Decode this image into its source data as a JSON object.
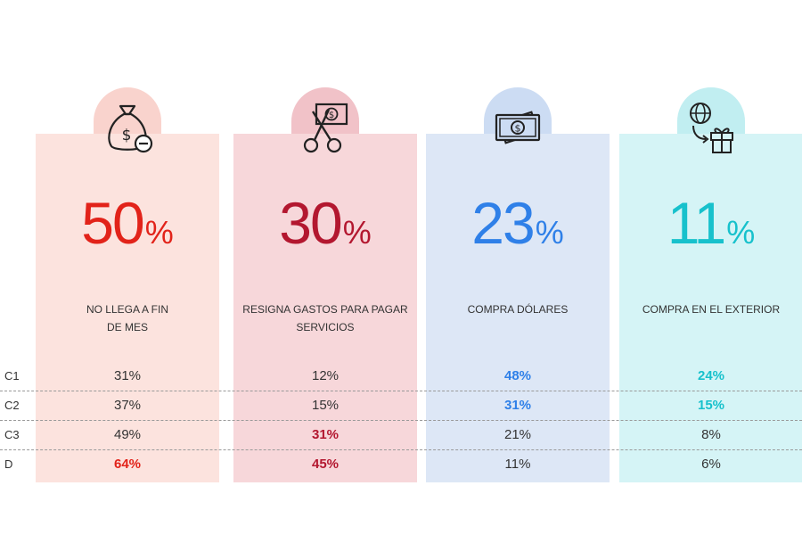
{
  "chart_data": {
    "type": "table",
    "row_labels": [
      "C1",
      "C2",
      "C3",
      "D"
    ],
    "series": [
      {
        "name": "NO LLEGA A FIN DE MES",
        "desc_lines": [
          "NO LLEGA A FIN",
          "DE MES"
        ],
        "total": "50",
        "unit": "%",
        "values": [
          "31%",
          "37%",
          "49%",
          "64%"
        ],
        "highlight": [
          false,
          false,
          false,
          true
        ],
        "icon": "money-bag-minus-icon",
        "color": "#e2231a",
        "card_color": "#fce3de",
        "bubble_color": "#f9d3cd"
      },
      {
        "name": "RESIGNA GASTOS PARA PAGAR SERVICIOS",
        "desc_lines": [
          "RESIGNA GASTOS PARA PAGAR",
          "SERVICIOS"
        ],
        "total": "30",
        "unit": "%",
        "values": [
          "12%",
          "15%",
          "31%",
          "45%"
        ],
        "highlight": [
          false,
          false,
          true,
          true
        ],
        "icon": "scissors-cutting-money-icon",
        "color": "#b3172f",
        "card_color": "#f7d7da",
        "bubble_color": "#f1c2c8"
      },
      {
        "name": "COMPRA DÓLARES",
        "desc_lines": [
          "COMPRA DÓLARES"
        ],
        "total": "23",
        "unit": "%",
        "values": [
          "48%",
          "31%",
          "21%",
          "11%"
        ],
        "highlight": [
          true,
          true,
          false,
          false
        ],
        "icon": "banknotes-icon",
        "color": "#2f80e8",
        "card_color": "#dde7f6",
        "bubble_color": "#ccdcf3"
      },
      {
        "name": "COMPRA EN EL EXTERIOR",
        "desc_lines": [
          "COMPRA EN EL EXTERIOR"
        ],
        "total": "11",
        "unit": "%",
        "values": [
          "24%",
          "15%",
          "8%",
          "6%"
        ],
        "highlight": [
          true,
          true,
          false,
          false
        ],
        "icon": "globe-gift-icon",
        "color": "#17c1cc",
        "card_color": "#d5f4f6",
        "bubble_color": "#c1eef1"
      }
    ]
  }
}
